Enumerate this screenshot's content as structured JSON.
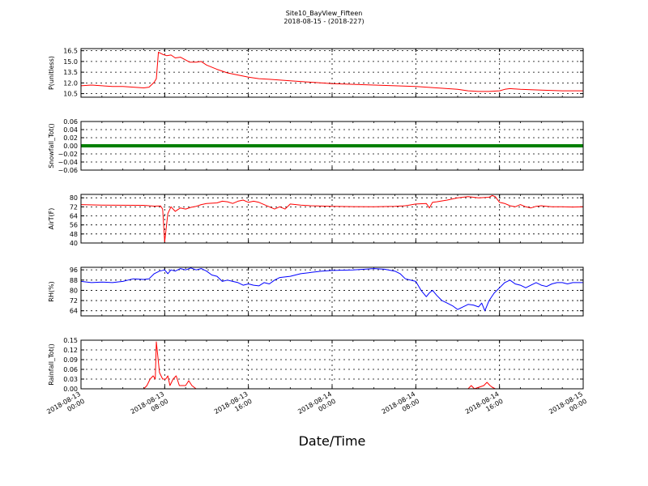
{
  "figure": {
    "title_line1": "Site10_BayView_Fifteen",
    "title_line2": "2018-08-15 - (2018-227)",
    "xlabel": "Date/Time"
  },
  "chart_data": {
    "type": "line",
    "x_ticks": [
      {
        "line1": "2018-08-13",
        "line2": "00:00",
        "h": 0
      },
      {
        "line1": "2018-08-13",
        "line2": "08:00",
        "h": 8
      },
      {
        "line1": "2018-08-13",
        "line2": "16:00",
        "h": 16
      },
      {
        "line1": "2018-08-14",
        "line2": "00:00",
        "h": 24
      },
      {
        "line1": "2018-08-14",
        "line2": "08:00",
        "h": 32
      },
      {
        "line1": "2018-08-14",
        "line2": "16:00",
        "h": 40
      },
      {
        "line1": "2018-08-15",
        "line2": "00:00",
        "h": 48
      }
    ],
    "x_range_hours": [
      0,
      48
    ],
    "grid": true,
    "panels": [
      {
        "ylabel": "P(unitless)",
        "ylim": [
          10.0,
          16.8
        ],
        "yticks": [
          "10.5",
          "12.0",
          "13.5",
          "15.0",
          "16.5"
        ],
        "ytick_values": [
          10.5,
          12.0,
          13.5,
          15.0,
          16.5
        ],
        "color": "#ff0000",
        "points": [
          [
            0,
            11.6
          ],
          [
            1,
            11.7
          ],
          [
            2,
            11.6
          ],
          [
            3,
            11.5
          ],
          [
            4,
            11.5
          ],
          [
            5,
            11.4
          ],
          [
            6,
            11.3
          ],
          [
            6.5,
            11.4
          ],
          [
            7,
            12.1
          ],
          [
            7.2,
            12.6
          ],
          [
            7.4,
            16.3
          ],
          [
            7.8,
            16.0
          ],
          [
            8.2,
            15.8
          ],
          [
            8.6,
            15.9
          ],
          [
            9,
            15.5
          ],
          [
            9.5,
            15.6
          ],
          [
            10,
            15.2
          ],
          [
            10.4,
            14.9
          ],
          [
            11,
            14.9
          ],
          [
            11.5,
            15.0
          ],
          [
            12,
            14.5
          ],
          [
            13,
            13.9
          ],
          [
            14,
            13.4
          ],
          [
            15,
            13.1
          ],
          [
            16,
            12.8
          ],
          [
            17,
            12.6
          ],
          [
            18,
            12.5
          ],
          [
            20,
            12.3
          ],
          [
            22,
            12.1
          ],
          [
            24,
            11.9
          ],
          [
            26,
            11.8
          ],
          [
            28,
            11.7
          ],
          [
            30,
            11.6
          ],
          [
            32,
            11.5
          ],
          [
            34,
            11.3
          ],
          [
            36,
            11.1
          ],
          [
            37,
            10.9
          ],
          [
            38,
            10.8
          ],
          [
            39,
            10.8
          ],
          [
            40,
            10.9
          ],
          [
            40.5,
            11.1
          ],
          [
            41,
            11.2
          ],
          [
            42,
            11.1
          ],
          [
            44,
            11.0
          ],
          [
            46,
            10.9
          ],
          [
            48,
            10.9
          ]
        ]
      },
      {
        "ylabel": "Snowfall_Tot()",
        "ylim": [
          -0.06,
          0.06
        ],
        "yticks": [
          "0.06",
          "0.04",
          "0.02",
          "0.00",
          "−0.02",
          "−0.04",
          "−0.06"
        ],
        "ytick_values": [
          0.06,
          0.04,
          0.02,
          0.0,
          -0.02,
          -0.04,
          -0.06
        ],
        "color": "#008000",
        "constant": 0.0,
        "thick": true
      },
      {
        "ylabel": "AirT(F)",
        "ylim": [
          40,
          83
        ],
        "yticks": [
          "80",
          "72",
          "64",
          "56",
          "48",
          "40"
        ],
        "ytick_values": [
          80,
          72,
          64,
          56,
          48,
          40
        ],
        "color": "#ff0000",
        "points": [
          [
            0,
            74
          ],
          [
            2,
            73.5
          ],
          [
            4,
            73.4
          ],
          [
            6,
            73.3
          ],
          [
            7,
            72.6
          ],
          [
            7.6,
            72.8
          ],
          [
            7.8,
            70
          ],
          [
            8.0,
            41
          ],
          [
            8.3,
            66
          ],
          [
            8.6,
            72
          ],
          [
            9,
            68
          ],
          [
            9.5,
            71
          ],
          [
            10,
            70
          ],
          [
            10.5,
            71.5
          ],
          [
            11,
            72.5
          ],
          [
            11.5,
            74
          ],
          [
            12,
            75
          ],
          [
            13,
            75.5
          ],
          [
            13.5,
            77
          ],
          [
            14,
            76.5
          ],
          [
            14.5,
            75
          ],
          [
            15,
            77
          ],
          [
            15.5,
            78
          ],
          [
            16,
            76
          ],
          [
            16.5,
            77
          ],
          [
            17,
            76
          ],
          [
            17.5,
            74
          ],
          [
            18,
            72
          ],
          [
            18.5,
            70
          ],
          [
            19,
            72
          ],
          [
            19.5,
            70
          ],
          [
            20,
            74.5
          ],
          [
            21,
            73.5
          ],
          [
            22,
            73
          ],
          [
            24,
            72.5
          ],
          [
            26,
            72.2
          ],
          [
            28,
            72
          ],
          [
            30,
            72.5
          ],
          [
            31,
            73
          ],
          [
            32,
            74.5
          ],
          [
            33,
            75
          ],
          [
            33.3,
            71
          ],
          [
            33.6,
            76
          ],
          [
            34,
            76.5
          ],
          [
            35,
            78
          ],
          [
            36,
            80
          ],
          [
            37,
            81
          ],
          [
            38,
            80
          ],
          [
            39,
            80.5
          ],
          [
            39.3,
            82
          ],
          [
            39.6,
            81
          ],
          [
            40,
            76
          ],
          [
            40.5,
            75
          ],
          [
            41,
            73
          ],
          [
            41.5,
            72
          ],
          [
            42,
            74
          ],
          [
            42.5,
            72
          ],
          [
            43,
            71
          ],
          [
            43.5,
            72.5
          ],
          [
            44,
            73
          ],
          [
            44.5,
            72.5
          ],
          [
            45,
            72
          ],
          [
            46,
            72
          ],
          [
            47,
            71.8
          ],
          [
            48,
            72
          ]
        ]
      },
      {
        "ylabel": "RH(%)",
        "ylim": [
          60,
          98
        ],
        "yticks": [
          "96",
          "88",
          "80",
          "72",
          "64"
        ],
        "ytick_values": [
          96,
          88,
          80,
          72,
          64
        ],
        "color": "#0000ff",
        "points": [
          [
            0,
            87
          ],
          [
            1,
            86
          ],
          [
            2,
            86.5
          ],
          [
            3,
            86
          ],
          [
            4,
            87
          ],
          [
            4.5,
            88
          ],
          [
            5,
            89
          ],
          [
            6,
            88.5
          ],
          [
            6.5,
            89
          ],
          [
            7,
            93
          ],
          [
            7.5,
            95
          ],
          [
            8,
            96
          ],
          [
            8.3,
            93
          ],
          [
            8.6,
            96
          ],
          [
            9,
            95
          ],
          [
            9.5,
            97
          ],
          [
            10,
            96
          ],
          [
            10.5,
            97.5
          ],
          [
            11,
            96
          ],
          [
            11.5,
            97
          ],
          [
            12,
            95
          ],
          [
            12.5,
            92
          ],
          [
            13,
            91
          ],
          [
            13.5,
            87
          ],
          [
            14,
            88
          ],
          [
            14.5,
            87
          ],
          [
            15,
            86
          ],
          [
            15.5,
            84
          ],
          [
            16,
            85
          ],
          [
            16.5,
            84
          ],
          [
            17,
            83.5
          ],
          [
            17.5,
            86
          ],
          [
            18,
            85
          ],
          [
            18.5,
            88
          ],
          [
            19,
            90
          ],
          [
            20,
            91
          ],
          [
            21,
            93
          ],
          [
            22,
            94
          ],
          [
            23,
            95
          ],
          [
            24,
            95.5
          ],
          [
            26,
            96
          ],
          [
            28,
            97
          ],
          [
            29,
            96.5
          ],
          [
            30,
            95
          ],
          [
            30.5,
            93
          ],
          [
            31,
            89
          ],
          [
            32,
            87
          ],
          [
            32.5,
            80
          ],
          [
            33,
            75
          ],
          [
            33.3,
            78
          ],
          [
            33.6,
            80
          ],
          [
            34,
            76
          ],
          [
            34.5,
            72
          ],
          [
            35,
            70
          ],
          [
            35.5,
            68
          ],
          [
            36,
            65
          ],
          [
            36.5,
            67
          ],
          [
            37,
            69
          ],
          [
            37.5,
            68.5
          ],
          [
            38,
            67
          ],
          [
            38.3,
            70
          ],
          [
            38.6,
            64
          ],
          [
            39,
            72
          ],
          [
            39.5,
            78
          ],
          [
            40,
            82
          ],
          [
            40.5,
            86
          ],
          [
            41,
            88
          ],
          [
            41.5,
            85
          ],
          [
            42,
            84
          ],
          [
            42.5,
            82
          ],
          [
            43,
            84
          ],
          [
            43.5,
            86
          ],
          [
            44,
            84
          ],
          [
            44.5,
            83
          ],
          [
            45,
            85
          ],
          [
            45.5,
            86
          ],
          [
            46,
            86
          ],
          [
            46.5,
            85
          ],
          [
            47,
            86
          ],
          [
            48,
            86
          ]
        ]
      },
      {
        "ylabel": "Rainfall_Tot()",
        "ylim": [
          0,
          0.15
        ],
        "yticks": [
          "0.15",
          "0.12",
          "0.09",
          "0.06",
          "0.03",
          "0.00"
        ],
        "ytick_values": [
          0.15,
          0.12,
          0.09,
          0.06,
          0.03,
          0.0
        ],
        "color": "#ff0000",
        "points": [
          [
            0,
            0
          ],
          [
            6,
            0
          ],
          [
            6.3,
            0.01
          ],
          [
            6.6,
            0.03
          ],
          [
            6.9,
            0.04
          ],
          [
            7.1,
            0.03
          ],
          [
            7.2,
            0.145
          ],
          [
            7.5,
            0.05
          ],
          [
            7.8,
            0.03
          ],
          [
            8.1,
            0.03
          ],
          [
            8.3,
            0.04
          ],
          [
            8.5,
            0.01
          ],
          [
            8.8,
            0.03
          ],
          [
            9.1,
            0.04
          ],
          [
            9.4,
            0.01
          ],
          [
            9.7,
            0.01
          ],
          [
            10,
            0.01
          ],
          [
            10.3,
            0.025
          ],
          [
            10.6,
            0.01
          ],
          [
            11,
            0
          ],
          [
            37,
            0
          ],
          [
            37.3,
            0.01
          ],
          [
            37.6,
            0
          ],
          [
            38.5,
            0.01
          ],
          [
            38.8,
            0.02
          ],
          [
            39.1,
            0.01
          ],
          [
            39.3,
            0.005
          ],
          [
            39.6,
            0
          ],
          [
            48,
            0
          ]
        ]
      }
    ]
  }
}
